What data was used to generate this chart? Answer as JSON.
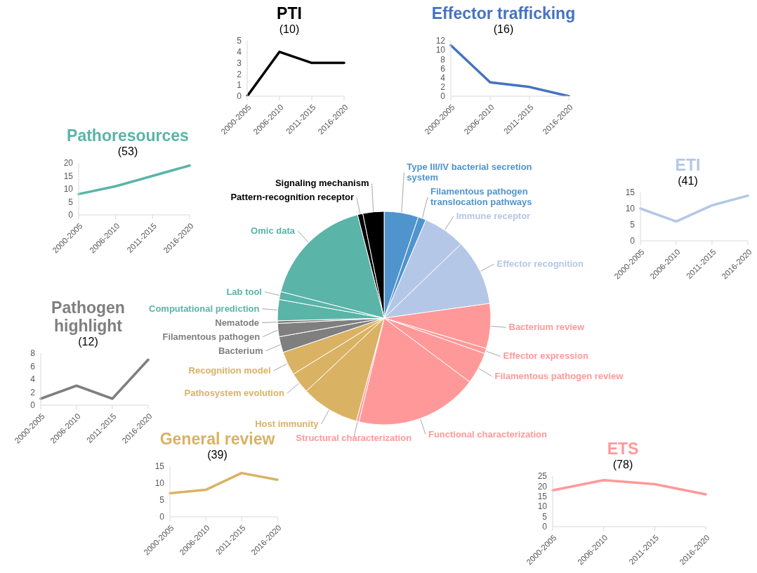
{
  "chart_data": [
    {
      "type": "line",
      "title": "PTI",
      "subtitle": "(10)",
      "categories": [
        "2000-2005",
        "2006-2010",
        "2011-2015",
        "2016-2020"
      ],
      "values": [
        0,
        4,
        3,
        3
      ],
      "color": "#000000",
      "ylim": [
        0,
        5
      ],
      "yticks": [
        0,
        1,
        2,
        3,
        4,
        5
      ],
      "grid": false
    },
    {
      "type": "line",
      "title": "Effector trafficking",
      "subtitle": "(16)",
      "categories": [
        "2000-2005",
        "2006-2010",
        "2011-2015",
        "2016-2020"
      ],
      "values": [
        11,
        3,
        2,
        0
      ],
      "color": "#4472c4",
      "ylim": [
        0,
        12
      ],
      "yticks": [
        0,
        2,
        4,
        6,
        8,
        10,
        12
      ],
      "grid": false
    },
    {
      "type": "line",
      "title": "Pathoresources",
      "subtitle": "(53)",
      "categories": [
        "2000-2005",
        "2006-2010",
        "2011-2015",
        "2016-2020"
      ],
      "values": [
        8,
        11,
        15,
        19
      ],
      "color": "#5ab4a8",
      "ylim": [
        0,
        20
      ],
      "yticks": [
        0,
        5,
        10,
        15,
        20
      ],
      "grid": false
    },
    {
      "type": "line",
      "title": "ETI",
      "subtitle": "(41)",
      "categories": [
        "2000-2005",
        "2006-2010",
        "2011-2015",
        "2016-2020"
      ],
      "values": [
        10,
        6,
        11,
        14
      ],
      "color": "#b4c7e7",
      "ylim": [
        0,
        15
      ],
      "yticks": [
        0,
        5,
        10,
        15
      ],
      "grid": false
    },
    {
      "type": "pie",
      "categories": [
        "Type III/IV bacterial secretion system",
        "Filamentous pathogen translocation pathways",
        "Immune receptor",
        "Effector recognition",
        "Bacterium review",
        "Effector expression",
        "Filamentous pathogen review",
        "Functional characterization",
        "Structural characterization",
        "Host immunity",
        "Pathosystem evolution",
        "Recognition model",
        "Bacterium",
        "Filamentous pathogen",
        "Nematode",
        "Computational prediction",
        "Lab tool",
        "Omic data",
        "Pattern-recognition receptor",
        "Signaling mechanism"
      ],
      "values": [
        5.2,
        1.2,
        6.4,
        10.0,
        6.8,
        0.8,
        4.8,
        18.6,
        0.4,
        8.8,
        3.2,
        3.6,
        2.4,
        2.0,
        0.4,
        3.2,
        1.2,
        17.0,
        0.8,
        3.2
      ],
      "colors": [
        "#5094ce",
        "#5094ce",
        "#b4c7e7",
        "#b4c7e7",
        "#ff9999",
        "#ff9999",
        "#ff9999",
        "#ff9999",
        "#ff9999",
        "#d9b263",
        "#d9b263",
        "#d9b263",
        "#7f7f7f",
        "#7f7f7f",
        "#7f7f7f",
        "#5ab4a8",
        "#5ab4a8",
        "#5ab4a8",
        "#000000",
        "#000000"
      ]
    },
    {
      "type": "line",
      "title": "Pathogen highlight",
      "subtitle": "(12)",
      "categories": [
        "2000-2005",
        "2006-2010",
        "2011-2015",
        "2016-2020"
      ],
      "values": [
        1,
        3,
        1,
        7
      ],
      "color": "#7f7f7f",
      "ylim": [
        0,
        8
      ],
      "yticks": [
        0,
        2,
        4,
        6,
        8
      ],
      "grid": false
    },
    {
      "type": "line",
      "title": "General review",
      "subtitle": "(39)",
      "categories": [
        "2000-2005",
        "2006-2010",
        "2011-2015",
        "2016-2020"
      ],
      "values": [
        7,
        8,
        13,
        11
      ],
      "color": "#d9b263",
      "ylim": [
        0,
        15
      ],
      "yticks": [
        0,
        5,
        10,
        15
      ],
      "grid": false
    },
    {
      "type": "line",
      "title": "ETS",
      "subtitle": "(78)",
      "categories": [
        "2000-2005",
        "2006-2010",
        "2011-2015",
        "2016-2020"
      ],
      "values": [
        18,
        23,
        21,
        16
      ],
      "color": "#ff9999",
      "ylim": [
        0,
        25
      ],
      "yticks": [
        0,
        5,
        10,
        15,
        20,
        25
      ],
      "grid": false
    }
  ]
}
